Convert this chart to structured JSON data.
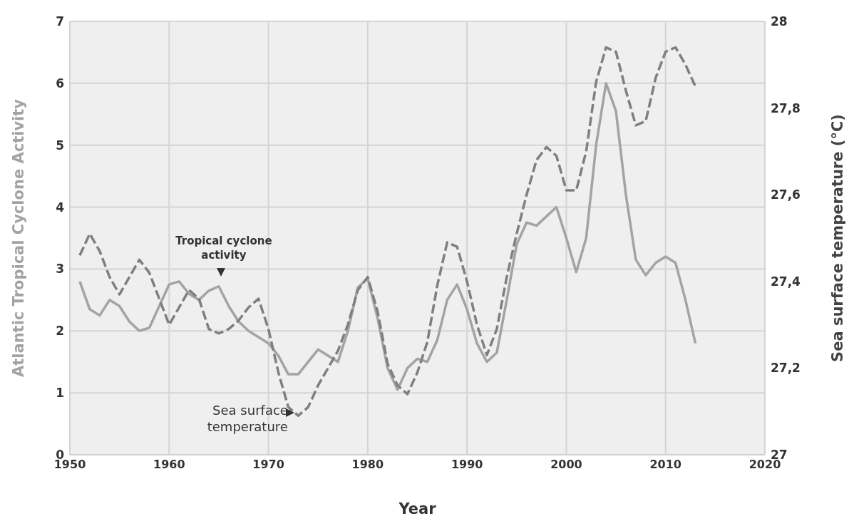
{
  "chart_data": {
    "type": "line",
    "xlabel": "Year",
    "ylabel": "Atlantic Tropical Cyclone Activity",
    "y2label": "Sea surface temperature  (°C)",
    "x": [
      1951,
      1952,
      1953,
      1954,
      1955,
      1956,
      1957,
      1958,
      1959,
      1960,
      1961,
      1962,
      1963,
      1964,
      1965,
      1966,
      1967,
      1968,
      1969,
      1970,
      1971,
      1972,
      1973,
      1974,
      1975,
      1976,
      1977,
      1978,
      1979,
      1980,
      1981,
      1982,
      1983,
      1984,
      1985,
      1986,
      1987,
      1988,
      1989,
      1990,
      1991,
      1992,
      1993,
      1994,
      1995,
      1996,
      1997,
      1998,
      1999,
      2000,
      2001,
      2002,
      2003,
      2004,
      2005,
      2006,
      2007,
      2008,
      2009,
      2010,
      2011,
      2012,
      2013
    ],
    "series": [
      {
        "name": "Tropical cyclone activity",
        "color": "#a3a3a3",
        "line_style": "solid",
        "values": [
          2.8,
          2.35,
          2.25,
          2.5,
          2.4,
          2.15,
          2.0,
          2.05,
          2.4,
          2.75,
          2.8,
          2.6,
          2.5,
          2.65,
          2.72,
          2.4,
          2.15,
          2.0,
          1.9,
          1.8,
          1.6,
          1.3,
          1.3,
          1.5,
          1.7,
          1.6,
          1.5,
          2.0,
          2.7,
          2.85,
          2.2,
          1.4,
          1.05,
          1.4,
          1.55,
          1.5,
          1.85,
          2.5,
          2.75,
          2.35,
          1.8,
          1.5,
          1.65,
          2.5,
          3.4,
          3.75,
          3.7,
          3.85,
          4.0,
          3.5,
          2.95,
          3.5,
          5.0,
          6.0,
          5.55,
          4.2,
          3.15,
          2.9,
          3.1,
          3.2,
          3.1,
          2.5,
          1.8
        ]
      },
      {
        "name": "Sea surface temperature",
        "color": "#7f7f7f",
        "line_style": "dashed",
        "axis": "y2",
        "values": [
          27.46,
          27.51,
          27.47,
          27.41,
          27.37,
          27.41,
          27.45,
          27.42,
          27.36,
          27.3,
          27.34,
          27.38,
          27.36,
          27.29,
          27.28,
          27.29,
          27.31,
          27.34,
          27.36,
          27.29,
          27.19,
          27.11,
          27.09,
          27.11,
          27.16,
          27.2,
          27.24,
          27.3,
          27.38,
          27.41,
          27.33,
          27.21,
          27.16,
          27.14,
          27.19,
          27.26,
          27.39,
          27.49,
          27.48,
          27.4,
          27.3,
          27.23,
          27.29,
          27.41,
          27.51,
          27.6,
          27.68,
          27.71,
          27.69,
          27.61,
          27.61,
          27.7,
          27.86,
          27.94,
          27.93,
          27.84,
          27.76,
          27.77,
          27.87,
          27.93,
          27.94,
          27.9,
          27.85
        ]
      }
    ],
    "xlim": [
      1950,
      2020
    ],
    "xticks": [
      1950,
      1960,
      1970,
      1980,
      1990,
      2000,
      2010,
      2020
    ],
    "ylim": [
      0,
      7
    ],
    "yticks": [
      0,
      1,
      2,
      3,
      4,
      5,
      6,
      7
    ],
    "y2lim": [
      27,
      28
    ],
    "y2ticks": [
      27,
      {
        "value": 27.2,
        "label": "27,2"
      },
      {
        "value": 27.4,
        "label": "27,4"
      },
      {
        "value": 27.6,
        "label": "27,6"
      },
      {
        "value": 27.8,
        "label": "27,8"
      },
      28
    ],
    "grid": true,
    "legend": false,
    "marker": "none"
  }
}
